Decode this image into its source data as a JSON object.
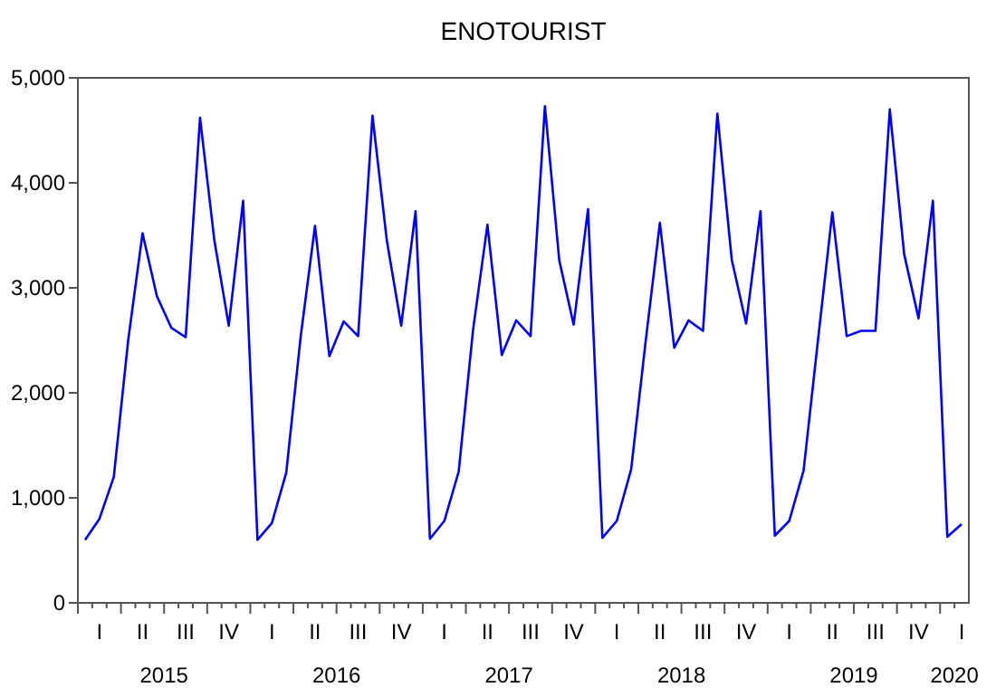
{
  "chart_data": {
    "type": "line",
    "title": "ENOTOURIST",
    "categories": [
      null,
      "I",
      null,
      null,
      "II",
      null,
      null,
      "III",
      null,
      null,
      "IV",
      null,
      null,
      "I",
      null,
      null,
      "II",
      null,
      null,
      "III",
      null,
      null,
      "IV",
      null,
      null,
      "I",
      null,
      null,
      "II",
      null,
      null,
      "III",
      null,
      null,
      "IV",
      null,
      null,
      "I",
      null,
      null,
      "II",
      null,
      null,
      "III",
      null,
      null,
      "IV",
      null,
      null,
      "I",
      null,
      null,
      "II",
      null,
      null,
      "III",
      null,
      null,
      "IV",
      null,
      null,
      "I"
    ],
    "series": [
      {
        "color": "#0000ff",
        "values": [
          600,
          800,
          1200,
          2500,
          3520,
          2920,
          2620,
          2530,
          4620,
          3450,
          2640,
          3830,
          600,
          760,
          1240,
          2530,
          3590,
          2350,
          2680,
          2540,
          4640,
          3450,
          2640,
          3730,
          610,
          780,
          1250,
          2600,
          3600,
          2360,
          2690,
          2540,
          4730,
          3260,
          2650,
          3750,
          620,
          780,
          1270,
          2480,
          3620,
          2430,
          2690,
          2590,
          4660,
          3270,
          2660,
          3730,
          640,
          780,
          1260,
          2500,
          3720,
          2540,
          2590,
          2590,
          4700,
          3320,
          2710,
          3830,
          630,
          750
        ]
      }
    ],
    "annotations": [
      "2015",
      "2016",
      "2017",
      "2018",
      "2019",
      "2020"
    ],
    "ylim": [
      0,
      5000
    ],
    "yticks": [
      {
        "value": 0,
        "label": "0"
      },
      {
        "value": 1000,
        "label": "1,000"
      },
      {
        "value": 2000,
        "label": "2,000"
      },
      {
        "value": 3000,
        "label": "3,000"
      },
      {
        "value": 4000,
        "label": "4,000"
      },
      {
        "value": 5000,
        "label": "5,000"
      }
    ],
    "grid": false,
    "marker": "none",
    "line_style": "solid"
  }
}
